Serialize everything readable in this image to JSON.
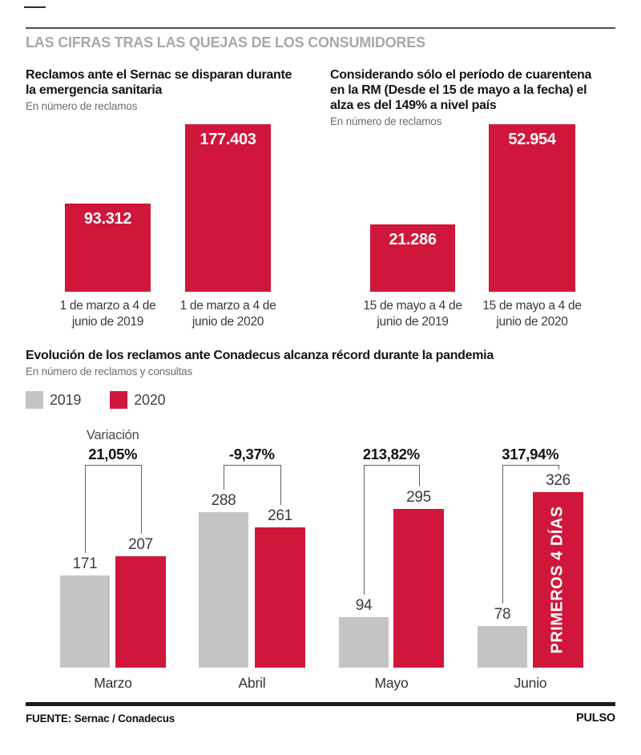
{
  "header": {
    "title": "LAS CIFRAS TRAS LAS QUEJAS DE LOS CONSUMIDORES"
  },
  "footer": {
    "source_label": "FUENTE: Sernac / Conadecus",
    "brand": "PULSO"
  },
  "colors": {
    "red": "#d0163a",
    "gray": "#c4c4c6",
    "header_gray": "#a8a8a8"
  },
  "chart_data": [
    {
      "id": "sernac",
      "type": "bar",
      "title": "Reclamos ante el Sernac se disparan durante\nla emergencia sanitaria",
      "subtitle": "En número de reclamos",
      "categories": [
        "1 de marzo a 4 de\njunio de 2019",
        "1 de marzo a 4 de\njunio de 2020"
      ],
      "values": [
        93312,
        177403
      ],
      "value_labels": [
        "93.312",
        "177.403"
      ],
      "bar_color": "#d0163a",
      "ylim": [
        0,
        177403
      ],
      "grid": false,
      "legend_position": "none"
    },
    {
      "id": "cuarentena-rm",
      "type": "bar",
      "title": "Considerando sólo el período de cuarentena\nen la RM (Desde el 15 de mayo a la fecha) el\nalza es del 149% a nivel país",
      "subtitle": "En número de reclamos",
      "categories": [
        "15 de mayo a 4 de\njunio de 2019",
        "15 de mayo a 4 de\njunio de 2020"
      ],
      "values": [
        21286,
        52954
      ],
      "value_labels": [
        "21.286",
        "52.954"
      ],
      "bar_color": "#d0163a",
      "ylim": [
        0,
        52954
      ],
      "grid": false,
      "legend_position": "none"
    },
    {
      "id": "conadecus",
      "type": "grouped-bar",
      "title": "Evolución de los reclamos ante Conadecus alcanza récord durante la pandemia",
      "subtitle": "En número de reclamos y consultas",
      "categories": [
        "Marzo",
        "Abril",
        "Mayo",
        "Junio"
      ],
      "series": [
        {
          "name": "2019",
          "color": "#c4c4c6",
          "values": [
            171,
            288,
            94,
            78
          ]
        },
        {
          "name": "2020",
          "color": "#d0163a",
          "values": [
            207,
            261,
            295,
            326
          ]
        }
      ],
      "legend": [
        {
          "label": "2019",
          "color": "#c4c4c6"
        },
        {
          "label": "2020",
          "color": "#d0163a"
        }
      ],
      "variation_label": "Variación",
      "variations": [
        "21,05%",
        "-9,37%",
        "213,82%",
        "317,94%"
      ],
      "annotation": {
        "text": "PRIMEROS 4 DÍAS",
        "category": "Junio",
        "series": "2020"
      },
      "ylim": [
        0,
        326
      ],
      "grid": false,
      "legend_position": "top-left"
    }
  ]
}
